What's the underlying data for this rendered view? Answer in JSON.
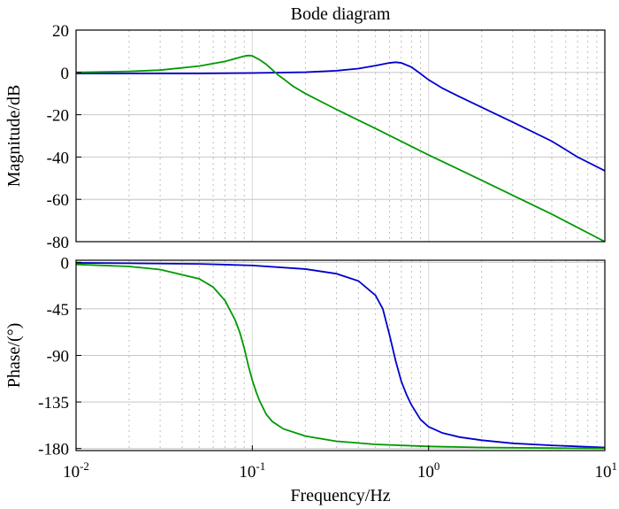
{
  "chart_data": [
    {
      "type": "line",
      "id": "magnitude",
      "title": "Bode diagram",
      "xlabel": "",
      "ylabel": "Magnitude/dB",
      "xscale": "log",
      "xlim": [
        0.01,
        10
      ],
      "ylim": [
        -80,
        20
      ],
      "yticks": [
        20,
        0,
        -20,
        -40,
        -60,
        -80
      ],
      "grid": true,
      "series": [
        {
          "color": "#0000cc",
          "x": [
            0.01,
            0.02,
            0.05,
            0.1,
            0.2,
            0.3,
            0.4,
            0.5,
            0.6,
            0.65,
            0.7,
            0.8,
            0.9,
            1,
            1.2,
            1.5,
            2,
            3,
            5,
            7,
            10
          ],
          "y": [
            -0.5,
            -0.5,
            -0.5,
            -0.3,
            0.1,
            0.8,
            1.8,
            3.2,
            4.5,
            4.8,
            4.5,
            2.5,
            -0.6,
            -3.5,
            -7.5,
            -11.5,
            -16.5,
            -23.5,
            -32.5,
            -40,
            -46.5
          ]
        },
        {
          "color": "#009900",
          "x": [
            0.01,
            0.02,
            0.03,
            0.05,
            0.07,
            0.08,
            0.09,
            0.095,
            0.1,
            0.11,
            0.12,
            0.13,
            0.14,
            0.15,
            0.17,
            0.2,
            0.3,
            0.5,
            1,
            2,
            5,
            10
          ],
          "y": [
            0,
            0.5,
            1.1,
            3,
            5.2,
            6.5,
            7.7,
            8,
            7.8,
            6,
            3.8,
            1.2,
            -1.2,
            -3,
            -6.5,
            -10,
            -17.5,
            -26.5,
            -39,
            -51,
            -67,
            -80
          ]
        }
      ]
    },
    {
      "type": "line",
      "id": "phase",
      "title": "",
      "xlabel": "Frequency/Hz",
      "ylabel": "Phase/(°)",
      "xscale": "log",
      "xlim": [
        0.01,
        10
      ],
      "ylim": [
        -182,
        2
      ],
      "yticks": [
        0,
        -45,
        -90,
        -135,
        -180
      ],
      "xticks": [
        0.01,
        0.1,
        1,
        10
      ],
      "xtick_labels": [
        {
          "base": "10",
          "exp": "-2"
        },
        {
          "base": "10",
          "exp": "-1"
        },
        {
          "base": "10",
          "exp": "0"
        },
        {
          "base": "10",
          "exp": "1"
        }
      ],
      "grid": true,
      "series": [
        {
          "color": "#0000cc",
          "x": [
            0.01,
            0.05,
            0.1,
            0.2,
            0.3,
            0.4,
            0.5,
            0.55,
            0.6,
            0.65,
            0.7,
            0.75,
            0.8,
            0.9,
            1,
            1.2,
            1.5,
            2,
            3,
            5,
            10
          ],
          "y": [
            -0.5,
            -1.5,
            -3,
            -6.5,
            -11,
            -18,
            -32,
            -45,
            -70,
            -95,
            -115,
            -128,
            -138,
            -152,
            -159,
            -165,
            -169,
            -172,
            -175,
            -177,
            -179
          ]
        },
        {
          "color": "#009900",
          "x": [
            0.01,
            0.02,
            0.03,
            0.05,
            0.06,
            0.07,
            0.08,
            0.085,
            0.09,
            0.095,
            0.1,
            0.105,
            0.11,
            0.12,
            0.13,
            0.15,
            0.2,
            0.3,
            0.5,
            1,
            2,
            5,
            10
          ],
          "y": [
            -2,
            -4,
            -7,
            -16,
            -24,
            -37,
            -56,
            -68,
            -83,
            -100,
            -114,
            -125,
            -134,
            -147,
            -154,
            -161,
            -168,
            -173,
            -176,
            -178,
            -179,
            -179.6,
            -180
          ]
        }
      ]
    }
  ]
}
